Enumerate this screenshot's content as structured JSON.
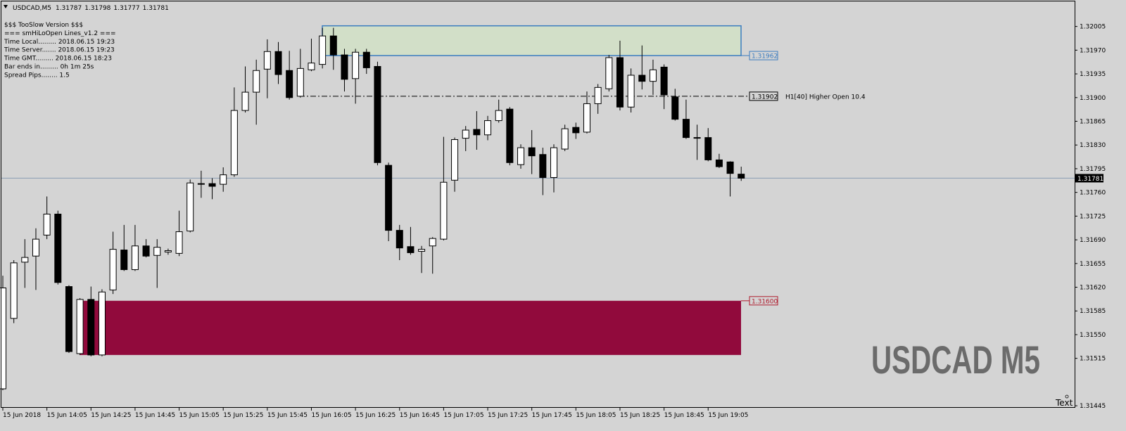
{
  "header": {
    "symbol": "USDCAD,M5"
  },
  "info_lines": [
    "$$$ TooSlow Version $$$",
    "=== smHiLoOpen Lines_v1.2 ===",
    "Time Local......... 2018.06.15 19:23",
    "Time Server....... 2018.06.15 19:23",
    "Time GMT......... 2018.06.15 18:23",
    "Bar ends in......... 0h 1m 25s",
    "Spread Pips........ 1.5"
  ],
  "watermark": "USDCAD M5",
  "text_object": "Text",
  "chart_data": {
    "type": "candlestick",
    "categories": [
      "15 Jun 2018",
      null,
      null,
      null,
      "15 Jun 14:05",
      null,
      null,
      null,
      "15 Jun 14:25",
      null,
      null,
      null,
      "15 Jun 14:45",
      null,
      null,
      null,
      "15 Jun 15:05",
      null,
      null,
      null,
      "15 Jun 15:25",
      null,
      null,
      null,
      "15 Jun 15:45",
      null,
      null,
      null,
      "15 Jun 16:05",
      null,
      null,
      null,
      "15 Jun 16:25",
      null,
      null,
      null,
      "15 Jun 16:45",
      null,
      null,
      null,
      "15 Jun 17:05",
      null,
      null,
      null,
      "15 Jun 17:25",
      null,
      null,
      null,
      "15 Jun 17:45",
      null,
      null,
      null,
      "15 Jun 18:05",
      null,
      null,
      null,
      "15 Jun 18:25",
      null,
      null,
      null,
      "15 Jun 18:45",
      null,
      null,
      null,
      "15 Jun 19:05",
      null,
      null,
      null
    ],
    "open": [
      1.3147,
      1.31574,
      1.31657,
      1.31666,
      1.31697,
      1.31728,
      1.31621,
      1.31522,
      1.31602,
      1.3152,
      1.31616,
      1.31675,
      1.31646,
      1.31681,
      1.31667,
      1.31672,
      1.3167,
      1.31703,
      1.31772,
      1.31773,
      1.31772,
      1.31786,
      1.31881,
      1.31908,
      1.31942,
      1.31968,
      1.3194,
      1.31902,
      1.31941,
      1.31949,
      1.31991,
      1.31963,
      1.31928,
      1.31967,
      1.31946,
      1.318,
      1.31704,
      1.3168,
      1.31673,
      1.31681,
      1.31691,
      1.31778,
      1.3184,
      1.31853,
      1.31845,
      1.31866,
      1.31883,
      1.31801,
      1.31826,
      1.31816,
      1.31782,
      1.31824,
      1.31856,
      1.31849,
      1.31891,
      1.31913,
      1.31959,
      1.31886,
      1.31933,
      1.31924,
      1.31945,
      1.31901,
      1.31868,
      1.31841,
      1.31841,
      1.31808,
      1.31805,
      1.31787
    ],
    "high": [
      1.31637,
      1.3166,
      1.31691,
      1.31707,
      1.31754,
      1.31733,
      1.31623,
      1.31604,
      1.31621,
      1.31617,
      1.31702,
      1.31712,
      1.31712,
      1.31691,
      1.31691,
      1.31677,
      1.31733,
      1.31779,
      1.31792,
      1.31781,
      1.31797,
      1.31915,
      1.31946,
      1.31956,
      1.31986,
      1.31982,
      1.31969,
      1.31972,
      1.31987,
      1.32003,
      1.32003,
      1.31972,
      1.31972,
      1.31972,
      1.31953,
      1.31804,
      1.31712,
      1.31709,
      1.31681,
      1.31694,
      1.31842,
      1.31841,
      1.31858,
      1.3188,
      1.31873,
      1.31897,
      1.31886,
      1.31831,
      1.31852,
      1.31826,
      1.31831,
      1.3186,
      1.31863,
      1.31909,
      1.3192,
      1.31963,
      1.31984,
      1.31943,
      1.31977,
      1.31956,
      1.31949,
      1.31913,
      1.31897,
      1.3186,
      1.31855,
      1.31817,
      1.31806,
      1.31798
    ],
    "low": [
      1.31468,
      1.31567,
      1.31619,
      1.31616,
      1.31691,
      1.31624,
      1.31523,
      1.3152,
      1.31518,
      1.31518,
      1.3161,
      1.31644,
      1.31644,
      1.31664,
      1.31619,
      1.31668,
      1.31666,
      1.31701,
      1.31752,
      1.3175,
      1.31761,
      1.31783,
      1.31878,
      1.3186,
      1.31899,
      1.3192,
      1.31897,
      1.319,
      1.31939,
      1.31943,
      1.31941,
      1.31909,
      1.31891,
      1.31935,
      1.318,
      1.31688,
      1.3166,
      1.31668,
      1.31641,
      1.3164,
      1.31689,
      1.31761,
      1.31821,
      1.31823,
      1.31837,
      1.31863,
      1.318,
      1.31795,
      1.31787,
      1.31756,
      1.3176,
      1.31821,
      1.31839,
      1.31847,
      1.31876,
      1.31909,
      1.31881,
      1.31878,
      1.31912,
      1.31904,
      1.31883,
      1.31866,
      1.31839,
      1.31808,
      1.31806,
      1.31796,
      1.31754,
      1.31777
    ],
    "close": [
      1.31619,
      1.31656,
      1.31664,
      1.31691,
      1.31728,
      1.31627,
      1.31525,
      1.31602,
      1.3152,
      1.31613,
      1.31676,
      1.31646,
      1.31681,
      1.31666,
      1.31679,
      1.31674,
      1.31702,
      1.31774,
      1.31773,
      1.31769,
      1.31786,
      1.31881,
      1.31908,
      1.3194,
      1.31968,
      1.31934,
      1.319,
      1.31943,
      1.31951,
      1.31991,
      1.31963,
      1.31927,
      1.31967,
      1.31944,
      1.31804,
      1.31704,
      1.31678,
      1.31671,
      1.31676,
      1.31692,
      1.31775,
      1.31838,
      1.31852,
      1.31845,
      1.31866,
      1.31881,
      1.31804,
      1.31826,
      1.31814,
      1.31782,
      1.31826,
      1.31854,
      1.31848,
      1.31891,
      1.31915,
      1.31959,
      1.31886,
      1.31933,
      1.31924,
      1.31941,
      1.31904,
      1.31868,
      1.31841,
      1.3184,
      1.31808,
      1.31798,
      1.31788,
      1.31781
    ],
    "up_color": "#ffffff",
    "down_color": "#000000",
    "ylim": [
      1.31442,
      1.32042
    ],
    "yticks": [
      1.32005,
      {
        "value": 1.3197,
        "label": "1.31970"
      },
      1.31935,
      {
        "value": 1.319,
        "label": "1.31900"
      },
      1.31865,
      {
        "value": 1.3183,
        "label": "1.31830"
      },
      1.31795,
      {
        "value": 1.3176,
        "label": "1.31760"
      },
      1.31725,
      {
        "value": 1.3169,
        "label": "1.31690"
      },
      1.31655,
      {
        "value": 1.3162,
        "label": "1.31620"
      },
      1.31585,
      {
        "value": 1.3155,
        "label": "1.31550"
      },
      1.31515,
      1.31445
    ],
    "zones": [
      {
        "top": 1.32006,
        "bottom": 1.31962,
        "label_edge": "bottom",
        "color": "#3b7cc0",
        "fill": "#d2dfc8"
      },
      {
        "top": {
          "value": 1.316,
          "label": "1.31600"
        },
        "bottom": 1.3152,
        "label_edge": "top",
        "color": "#b01c2e",
        "fill": "#910a3c"
      }
    ],
    "levels": [
      {
        "value": 1.31902,
        "name": "H1[40] Higher Open 10.4"
      }
    ],
    "bid_line_color": "#8a9db3"
  }
}
